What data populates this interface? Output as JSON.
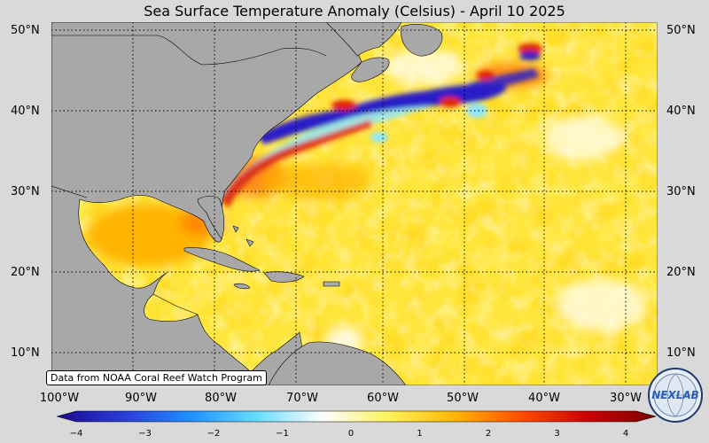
{
  "title": "Sea Surface Temperature Anomaly (Celsius) - April 10 2025",
  "credit": "Data from NOAA Coral Reef Watch Program",
  "logo_text": "NEXLAB",
  "lat_labels": [
    "50°N",
    "40°N",
    "30°N",
    "20°N",
    "10°N"
  ],
  "lat_labels_right": [
    "50°N",
    "40°N",
    "30°N",
    "20°N",
    "10°N"
  ],
  "lon_labels": [
    "100°W",
    "90°W",
    "80°W",
    "70°W",
    "60°W",
    "50°W",
    "40°W",
    "30°W"
  ],
  "colorbar": {
    "min": -4,
    "max": 4,
    "ticks": [
      "−4",
      "−3",
      "−2",
      "−1",
      "0",
      "1",
      "2",
      "3",
      "4"
    ],
    "colors": [
      "#1a0a8c",
      "#2b3cd8",
      "#1f8fff",
      "#66ddff",
      "#ffffff",
      "#fff25a",
      "#ffb400",
      "#ff4a00",
      "#c80000",
      "#7a0000"
    ]
  },
  "map_colors": {
    "land": "#a8a8a8",
    "ocean_base": "#ffe63c",
    "warm": "#ffb400",
    "hot": "#ff6a00",
    "very_hot": "#e02000",
    "cold": "#2a1cc8",
    "cool": "#8ee6ff",
    "neutral": "#ffffff"
  }
}
